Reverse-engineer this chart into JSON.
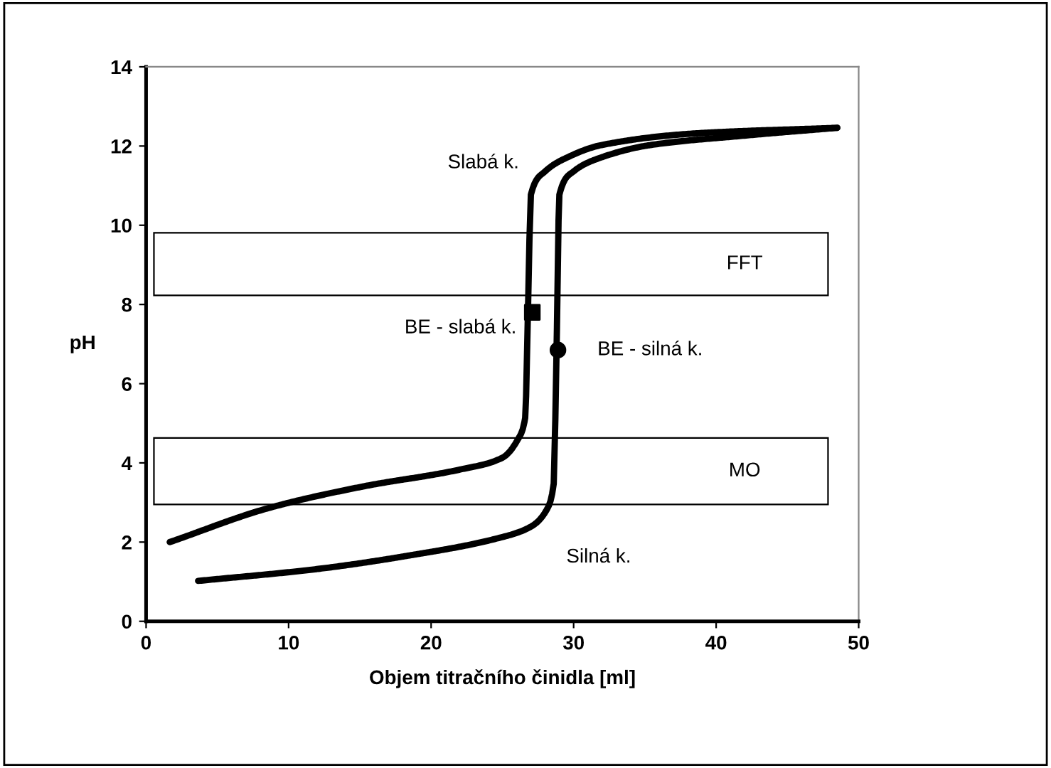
{
  "chart_data": {
    "type": "line",
    "xlabel": "Objem titračního činidla [ml]",
    "ylabel": "pH",
    "xlim": [
      0,
      50
    ],
    "xticks": [
      0,
      10,
      20,
      30,
      40,
      50
    ],
    "ylim": [
      0,
      14
    ],
    "yticks": [
      0,
      2,
      4,
      6,
      8,
      10,
      12,
      14
    ],
    "grid": false,
    "legend": false,
    "line_style": "solid",
    "marker": "none",
    "series": [
      {
        "type": "line",
        "name": "Slabá k.",
        "color": "#000000",
        "x": [
          1.66,
          8.7,
          15.3,
          22.0,
          25.0,
          26.1,
          26.6,
          26.8,
          27.0,
          28.0,
          29.6,
          31.9,
          38.6,
          48.5
        ],
        "values": [
          2.0,
          2.87,
          3.41,
          3.83,
          4.13,
          4.6,
          5.14,
          7.9,
          10.77,
          11.36,
          11.72,
          12.02,
          12.32,
          12.46
        ]
      },
      {
        "type": "line",
        "name": "Silná k.",
        "color": "#000000",
        "x": [
          3.65,
          12.0,
          18.6,
          24.6,
          27.0,
          28.1,
          28.6,
          28.8,
          29.0,
          30.0,
          32.0,
          35.3,
          41.9,
          48.5
        ],
        "values": [
          1.02,
          1.32,
          1.67,
          2.09,
          2.39,
          2.81,
          3.47,
          6.82,
          10.77,
          11.36,
          11.72,
          12.02,
          12.26,
          12.46
        ]
      },
      {
        "type": "scatter",
        "name": "BE - slabá k.",
        "color": "#000000",
        "marker": "square",
        "x": [
          27.1
        ],
        "values": [
          7.8
        ]
      },
      {
        "type": "scatter",
        "name": "BE - silná k.",
        "color": "#000000",
        "marker": "circle",
        "x": [
          28.9
        ],
        "values": [
          6.85
        ]
      }
    ],
    "bands": [
      {
        "axis": "y",
        "from": 8.23,
        "to": 9.81,
        "label": "FFT",
        "color": "#ffffff"
      },
      {
        "axis": "y",
        "from": 2.95,
        "to": 4.63,
        "label": "MO",
        "color": "#ffffff"
      }
    ]
  }
}
